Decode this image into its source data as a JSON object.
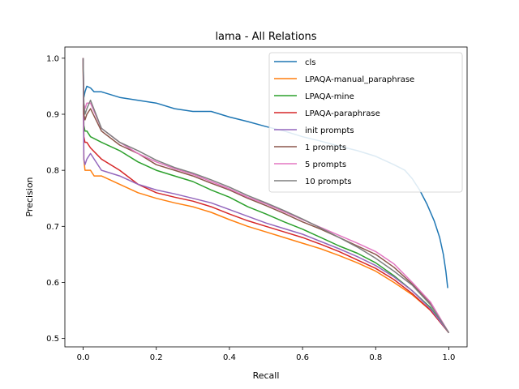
{
  "chart_data": {
    "type": "line",
    "title": "lama - All Relations",
    "xlabel": "Recall",
    "ylabel": "Precision",
    "xlim": [
      -0.05,
      1.05
    ],
    "ylim": [
      0.485,
      1.02
    ],
    "xticks": [
      0.0,
      0.2,
      0.4,
      0.6,
      0.8,
      1.0
    ],
    "xtick_labels": [
      "0.0",
      "0.2",
      "0.4",
      "0.6",
      "0.8",
      "1.0"
    ],
    "yticks": [
      0.5,
      0.6,
      0.7,
      0.8,
      0.9,
      1.0
    ],
    "ytick_labels": [
      "0.5",
      "0.6",
      "0.7",
      "0.8",
      "0.9",
      "1.0"
    ],
    "grid": false,
    "legend": "top-right",
    "series": [
      {
        "name": "cls",
        "color": "#1f77b4",
        "points": [
          [
            0.0,
            1.0
          ],
          [
            0.002,
            0.93
          ],
          [
            0.005,
            0.94
          ],
          [
            0.01,
            0.95
          ],
          [
            0.02,
            0.947
          ],
          [
            0.03,
            0.94
          ],
          [
            0.05,
            0.94
          ],
          [
            0.1,
            0.93
          ],
          [
            0.15,
            0.925
          ],
          [
            0.2,
            0.92
          ],
          [
            0.25,
            0.91
          ],
          [
            0.3,
            0.905
          ],
          [
            0.35,
            0.905
          ],
          [
            0.4,
            0.895
          ],
          [
            0.45,
            0.887
          ],
          [
            0.5,
            0.878
          ],
          [
            0.55,
            0.87
          ],
          [
            0.6,
            0.86
          ],
          [
            0.65,
            0.852
          ],
          [
            0.7,
            0.843
          ],
          [
            0.75,
            0.835
          ],
          [
            0.8,
            0.825
          ],
          [
            0.85,
            0.81
          ],
          [
            0.88,
            0.8
          ],
          [
            0.9,
            0.785
          ],
          [
            0.92,
            0.765
          ],
          [
            0.94,
            0.74
          ],
          [
            0.96,
            0.71
          ],
          [
            0.975,
            0.68
          ],
          [
            0.985,
            0.65
          ],
          [
            0.992,
            0.62
          ],
          [
            0.997,
            0.59
          ]
        ]
      },
      {
        "name": "LPAQA-manual_paraphrase",
        "color": "#ff7f0e",
        "points": [
          [
            0.0,
            1.0
          ],
          [
            0.002,
            0.82
          ],
          [
            0.005,
            0.8
          ],
          [
            0.01,
            0.8
          ],
          [
            0.02,
            0.8
          ],
          [
            0.03,
            0.79
          ],
          [
            0.05,
            0.79
          ],
          [
            0.1,
            0.775
          ],
          [
            0.15,
            0.76
          ],
          [
            0.2,
            0.75
          ],
          [
            0.25,
            0.742
          ],
          [
            0.3,
            0.735
          ],
          [
            0.35,
            0.725
          ],
          [
            0.4,
            0.712
          ],
          [
            0.45,
            0.7
          ],
          [
            0.5,
            0.69
          ],
          [
            0.55,
            0.68
          ],
          [
            0.6,
            0.67
          ],
          [
            0.65,
            0.66
          ],
          [
            0.7,
            0.648
          ],
          [
            0.75,
            0.635
          ],
          [
            0.8,
            0.62
          ],
          [
            0.85,
            0.6
          ],
          [
            0.9,
            0.578
          ],
          [
            0.95,
            0.55
          ],
          [
            1.0,
            0.51
          ]
        ]
      },
      {
        "name": "LPAQA-mine",
        "color": "#2ca02c",
        "points": [
          [
            0.0,
            1.0
          ],
          [
            0.002,
            0.88
          ],
          [
            0.005,
            0.87
          ],
          [
            0.01,
            0.87
          ],
          [
            0.02,
            0.86
          ],
          [
            0.05,
            0.85
          ],
          [
            0.1,
            0.835
          ],
          [
            0.15,
            0.815
          ],
          [
            0.2,
            0.8
          ],
          [
            0.25,
            0.79
          ],
          [
            0.3,
            0.78
          ],
          [
            0.35,
            0.765
          ],
          [
            0.4,
            0.752
          ],
          [
            0.45,
            0.735
          ],
          [
            0.5,
            0.722
          ],
          [
            0.55,
            0.708
          ],
          [
            0.6,
            0.695
          ],
          [
            0.65,
            0.68
          ],
          [
            0.7,
            0.665
          ],
          [
            0.75,
            0.652
          ],
          [
            0.8,
            0.635
          ],
          [
            0.85,
            0.612
          ],
          [
            0.9,
            0.585
          ],
          [
            0.95,
            0.555
          ],
          [
            1.0,
            0.51
          ]
        ]
      },
      {
        "name": "LPAQA-paraphrase",
        "color": "#d62728",
        "points": [
          [
            0.0,
            1.0
          ],
          [
            0.002,
            0.86
          ],
          [
            0.005,
            0.85
          ],
          [
            0.01,
            0.85
          ],
          [
            0.02,
            0.84
          ],
          [
            0.05,
            0.82
          ],
          [
            0.1,
            0.8
          ],
          [
            0.15,
            0.775
          ],
          [
            0.2,
            0.76
          ],
          [
            0.25,
            0.752
          ],
          [
            0.3,
            0.745
          ],
          [
            0.35,
            0.735
          ],
          [
            0.4,
            0.722
          ],
          [
            0.45,
            0.71
          ],
          [
            0.5,
            0.7
          ],
          [
            0.55,
            0.69
          ],
          [
            0.6,
            0.68
          ],
          [
            0.65,
            0.668
          ],
          [
            0.7,
            0.655
          ],
          [
            0.75,
            0.64
          ],
          [
            0.8,
            0.625
          ],
          [
            0.85,
            0.605
          ],
          [
            0.9,
            0.58
          ],
          [
            0.95,
            0.55
          ],
          [
            1.0,
            0.51
          ]
        ]
      },
      {
        "name": "init prompts",
        "color": "#9467bd",
        "points": [
          [
            0.0,
            1.0
          ],
          [
            0.002,
            0.82
          ],
          [
            0.005,
            0.81
          ],
          [
            0.01,
            0.82
          ],
          [
            0.02,
            0.83
          ],
          [
            0.05,
            0.8
          ],
          [
            0.1,
            0.79
          ],
          [
            0.15,
            0.775
          ],
          [
            0.2,
            0.765
          ],
          [
            0.25,
            0.758
          ],
          [
            0.3,
            0.75
          ],
          [
            0.35,
            0.742
          ],
          [
            0.4,
            0.73
          ],
          [
            0.45,
            0.718
          ],
          [
            0.5,
            0.706
          ],
          [
            0.55,
            0.696
          ],
          [
            0.6,
            0.686
          ],
          [
            0.65,
            0.673
          ],
          [
            0.7,
            0.66
          ],
          [
            0.75,
            0.646
          ],
          [
            0.8,
            0.63
          ],
          [
            0.85,
            0.61
          ],
          [
            0.9,
            0.585
          ],
          [
            0.95,
            0.553
          ],
          [
            1.0,
            0.51
          ]
        ]
      },
      {
        "name": "1 prompts",
        "color": "#8c564b",
        "points": [
          [
            0.0,
            1.0
          ],
          [
            0.002,
            0.9
          ],
          [
            0.005,
            0.89
          ],
          [
            0.01,
            0.9
          ],
          [
            0.02,
            0.91
          ],
          [
            0.05,
            0.87
          ],
          [
            0.1,
            0.845
          ],
          [
            0.15,
            0.83
          ],
          [
            0.2,
            0.81
          ],
          [
            0.25,
            0.8
          ],
          [
            0.3,
            0.79
          ],
          [
            0.35,
            0.777
          ],
          [
            0.4,
            0.765
          ],
          [
            0.45,
            0.75
          ],
          [
            0.5,
            0.737
          ],
          [
            0.55,
            0.723
          ],
          [
            0.6,
            0.708
          ],
          [
            0.65,
            0.695
          ],
          [
            0.7,
            0.68
          ],
          [
            0.75,
            0.665
          ],
          [
            0.8,
            0.65
          ],
          [
            0.85,
            0.627
          ],
          [
            0.9,
            0.597
          ],
          [
            0.95,
            0.563
          ],
          [
            1.0,
            0.51
          ]
        ]
      },
      {
        "name": "5 prompts",
        "color": "#e377c2",
        "points": [
          [
            0.0,
            1.0
          ],
          [
            0.002,
            0.92
          ],
          [
            0.005,
            0.91
          ],
          [
            0.01,
            0.92
          ],
          [
            0.02,
            0.92
          ],
          [
            0.05,
            0.875
          ],
          [
            0.1,
            0.85
          ],
          [
            0.15,
            0.83
          ],
          [
            0.2,
            0.815
          ],
          [
            0.25,
            0.803
          ],
          [
            0.3,
            0.793
          ],
          [
            0.35,
            0.78
          ],
          [
            0.4,
            0.767
          ],
          [
            0.45,
            0.752
          ],
          [
            0.5,
            0.74
          ],
          [
            0.55,
            0.726
          ],
          [
            0.6,
            0.712
          ],
          [
            0.65,
            0.698
          ],
          [
            0.7,
            0.684
          ],
          [
            0.75,
            0.67
          ],
          [
            0.8,
            0.655
          ],
          [
            0.85,
            0.633
          ],
          [
            0.9,
            0.6
          ],
          [
            0.95,
            0.565
          ],
          [
            1.0,
            0.51
          ]
        ]
      },
      {
        "name": "10 prompts",
        "color": "#7f7f7f",
        "points": [
          [
            0.0,
            1.0
          ],
          [
            0.002,
            0.92
          ],
          [
            0.005,
            0.9
          ],
          [
            0.01,
            0.91
          ],
          [
            0.02,
            0.925
          ],
          [
            0.05,
            0.875
          ],
          [
            0.1,
            0.85
          ],
          [
            0.15,
            0.835
          ],
          [
            0.2,
            0.818
          ],
          [
            0.25,
            0.805
          ],
          [
            0.3,
            0.795
          ],
          [
            0.35,
            0.783
          ],
          [
            0.4,
            0.77
          ],
          [
            0.45,
            0.755
          ],
          [
            0.5,
            0.742
          ],
          [
            0.55,
            0.728
          ],
          [
            0.6,
            0.713
          ],
          [
            0.65,
            0.697
          ],
          [
            0.7,
            0.68
          ],
          [
            0.75,
            0.663
          ],
          [
            0.8,
            0.643
          ],
          [
            0.85,
            0.62
          ],
          [
            0.9,
            0.595
          ],
          [
            0.95,
            0.56
          ],
          [
            1.0,
            0.51
          ]
        ]
      }
    ]
  }
}
